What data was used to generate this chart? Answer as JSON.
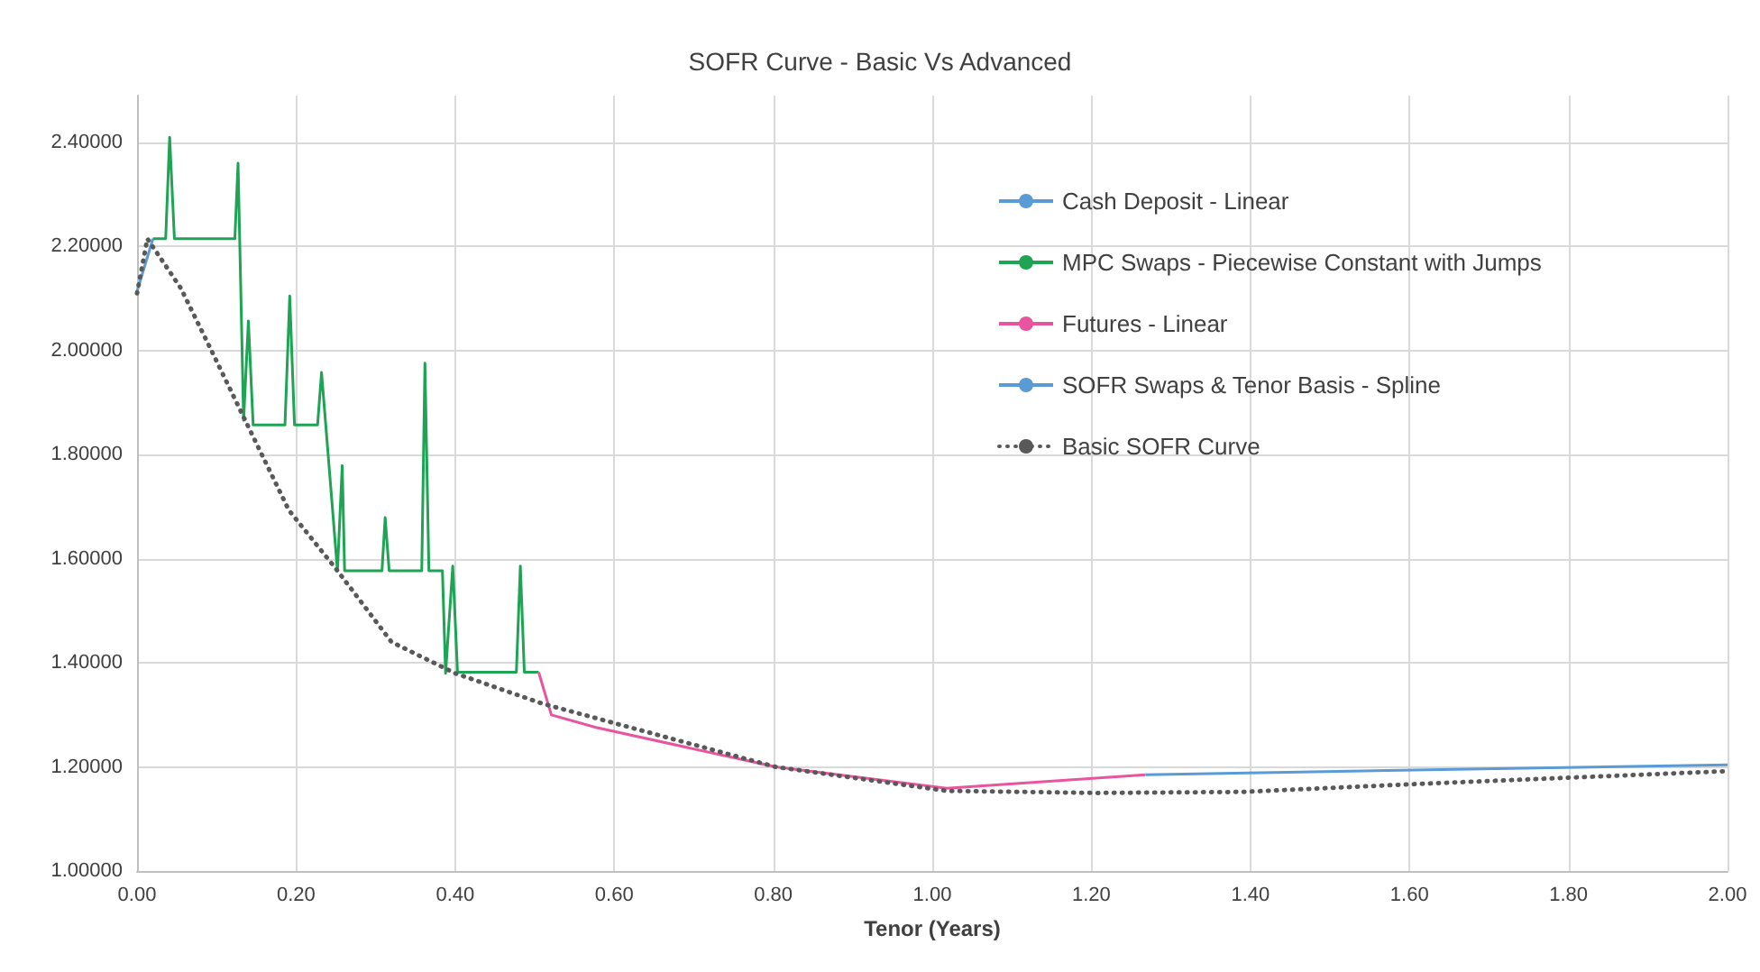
{
  "chart_data": {
    "type": "line",
    "title": "SOFR Curve - Basic Vs Advanced",
    "xlabel": "Tenor (Years)",
    "xlim": [
      0,
      2
    ],
    "xticks": [
      {
        "value": 0,
        "label": "0.00"
      },
      {
        "value": 0.2,
        "label": "0.20"
      },
      {
        "value": 0.4,
        "label": "0.40"
      },
      {
        "value": 0.6,
        "label": "0.60"
      },
      {
        "value": 0.8,
        "label": "0.80"
      },
      {
        "value": 1,
        "label": "1.00"
      },
      {
        "value": 1.2,
        "label": "1.20"
      },
      {
        "value": 1.4,
        "label": "1.40"
      },
      {
        "value": 1.6,
        "label": "1.60"
      },
      {
        "value": 1.8,
        "label": "1.80"
      },
      {
        "value": 2,
        "label": "2.00"
      }
    ],
    "ylim": [
      1,
      2.49
    ],
    "yticks": [
      {
        "value": 1,
        "label": "1.00000"
      },
      {
        "value": 1.2,
        "label": "1.20000"
      },
      {
        "value": 1.4,
        "label": "1.40000"
      },
      {
        "value": 1.6,
        "label": "1.60000"
      },
      {
        "value": 1.8,
        "label": "1.80000"
      },
      {
        "value": 2,
        "label": "2.00000"
      },
      {
        "value": 2.2,
        "label": "2.20000"
      },
      {
        "value": 2.4,
        "label": "2.40000"
      }
    ],
    "grid": true,
    "legend": "top right",
    "marker": "none",
    "series": [
      {
        "name": "Cash Deposit - Linear",
        "color": "#5b9bd5",
        "x": [
          0,
          0.02
        ],
        "values": [
          2.114,
          2.215
        ]
      },
      {
        "name": "MPC Swaps - Piecewise Constant with Jumps",
        "color": "#1fa354",
        "x": [
          0.02,
          0.036,
          0.041,
          0.047,
          0.123,
          0.127,
          0.134,
          0.14,
          0.146,
          0.186,
          0.192,
          0.198,
          0.227,
          0.232,
          0.252,
          0.258,
          0.261,
          0.308,
          0.312,
          0.317,
          0.358,
          0.362,
          0.367,
          0.384,
          0.388,
          0.397,
          0.403,
          0.477,
          0.482,
          0.487,
          0.505
        ],
        "values": [
          2.215,
          2.215,
          2.41,
          2.215,
          2.215,
          2.36,
          1.866,
          2.057,
          1.857,
          1.857,
          2.105,
          1.857,
          1.857,
          1.958,
          1.577,
          1.779,
          1.577,
          1.577,
          1.679,
          1.577,
          1.577,
          1.976,
          1.577,
          1.577,
          1.38,
          1.586,
          1.382,
          1.382,
          1.586,
          1.382,
          1.382
        ]
      },
      {
        "name": "Futures - Linear",
        "color": "#e8559e",
        "x": [
          0.505,
          0.521,
          0.577,
          0.803,
          1.018,
          1.268
        ],
        "values": [
          1.382,
          1.3,
          1.276,
          1.2,
          1.159,
          1.185
        ]
      },
      {
        "name": "SOFR Swaps & Tenor Basis - Spline",
        "color": "#5b9bd5",
        "x": [
          1.268,
          1.606,
          2
        ],
        "values": [
          1.185,
          1.194,
          1.204
        ]
      },
      {
        "name": "Basic SOFR Curve",
        "color": "#595959",
        "line_style": "dotted",
        "x": [
          0,
          0.013,
          0.055,
          0.092,
          0.136,
          0.191,
          0.252,
          0.32,
          0.4,
          0.509,
          0.803,
          1.018,
          1.205,
          1.39,
          1.606,
          2
        ],
        "values": [
          2.11,
          2.215,
          2.12,
          2.005,
          1.866,
          1.693,
          1.577,
          1.44,
          1.38,
          1.322,
          1.2,
          1.154,
          1.15,
          1.152,
          1.167,
          1.192
        ]
      }
    ]
  }
}
